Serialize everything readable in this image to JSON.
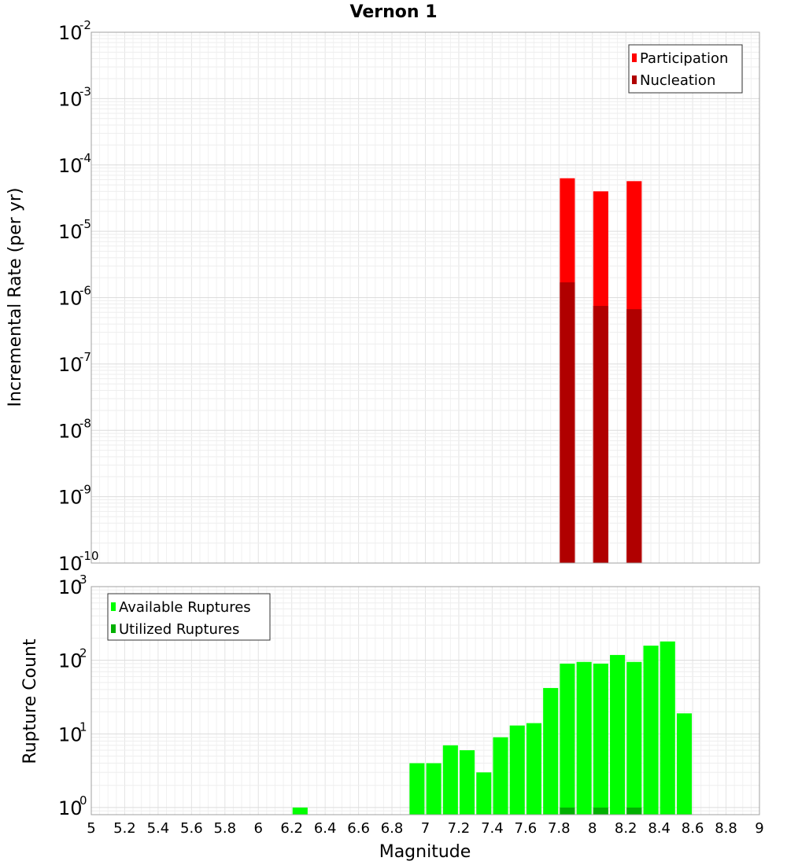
{
  "chart_data": [
    {
      "type": "bar",
      "title": "Vernon 1",
      "xlabel": "Magnitude",
      "ylabel": "Incremental Rate (per yr)",
      "yscale": "log",
      "ylim": [
        1e-10,
        0.01
      ],
      "xlim": [
        5,
        9
      ],
      "y_ticks": [
        {
          "base": "10",
          "exp": "-10",
          "value": 1e-10
        },
        {
          "base": "10",
          "exp": "-9",
          "value": 1e-09
        },
        {
          "base": "10",
          "exp": "-8",
          "value": 1e-08
        },
        {
          "base": "10",
          "exp": "-7",
          "value": 1e-07
        },
        {
          "base": "10",
          "exp": "-6",
          "value": 1e-06
        },
        {
          "base": "10",
          "exp": "-5",
          "value": 1e-05
        },
        {
          "base": "10",
          "exp": "-4",
          "value": 0.0001
        },
        {
          "base": "10",
          "exp": "-3",
          "value": 0.001
        },
        {
          "base": "10",
          "exp": "-2",
          "value": 0.01
        }
      ],
      "legend_position": "top-right",
      "bar_width": 0.09,
      "series": [
        {
          "name": "Participation",
          "color": "#ff0000",
          "x": [
            7.85,
            8.05,
            8.25
          ],
          "values": [
            6.3e-05,
            4e-05,
            5.7e-05
          ]
        },
        {
          "name": "Nucleation",
          "color": "#b00000",
          "x": [
            7.85,
            8.05,
            8.25
          ],
          "values": [
            1.7e-06,
            7.5e-07,
            6.7e-07
          ]
        }
      ]
    },
    {
      "type": "bar",
      "xlabel": "Magnitude",
      "ylabel": "Rupture Count",
      "yscale": "log",
      "ylim": [
        0.8,
        1000
      ],
      "xlim": [
        5,
        9
      ],
      "x_ticks": [
        "5",
        "5.2",
        "5.4",
        "5.6",
        "5.8",
        "6",
        "6.2",
        "6.4",
        "6.6",
        "6.8",
        "7",
        "7.2",
        "7.4",
        "7.6",
        "7.8",
        "8",
        "8.2",
        "8.4",
        "8.6",
        "8.8",
        "9"
      ],
      "y_ticks": [
        {
          "base": "10",
          "exp": "0",
          "value": 1
        },
        {
          "base": "10",
          "exp": "1",
          "value": 10
        },
        {
          "base": "10",
          "exp": "2",
          "value": 100
        },
        {
          "base": "10",
          "exp": "3",
          "value": 1000
        }
      ],
      "legend_position": "top-left",
      "bar_width": 0.09,
      "series": [
        {
          "name": "Available Ruptures",
          "color": "#00ff00",
          "x": [
            6.25,
            6.95,
            7.05,
            7.15,
            7.25,
            7.35,
            7.45,
            7.55,
            7.65,
            7.75,
            7.85,
            7.95,
            8.05,
            8.15,
            8.25,
            8.35,
            8.45,
            8.55
          ],
          "values": [
            1,
            4,
            4,
            7,
            6,
            3,
            9,
            13,
            14,
            42,
            90,
            95,
            90,
            118,
            95,
            158,
            180,
            19
          ]
        },
        {
          "name": "Utilized Ruptures",
          "color": "#00b000",
          "x": [
            7.85,
            8.05,
            8.25
          ],
          "values": [
            1,
            1,
            1
          ]
        }
      ]
    }
  ]
}
